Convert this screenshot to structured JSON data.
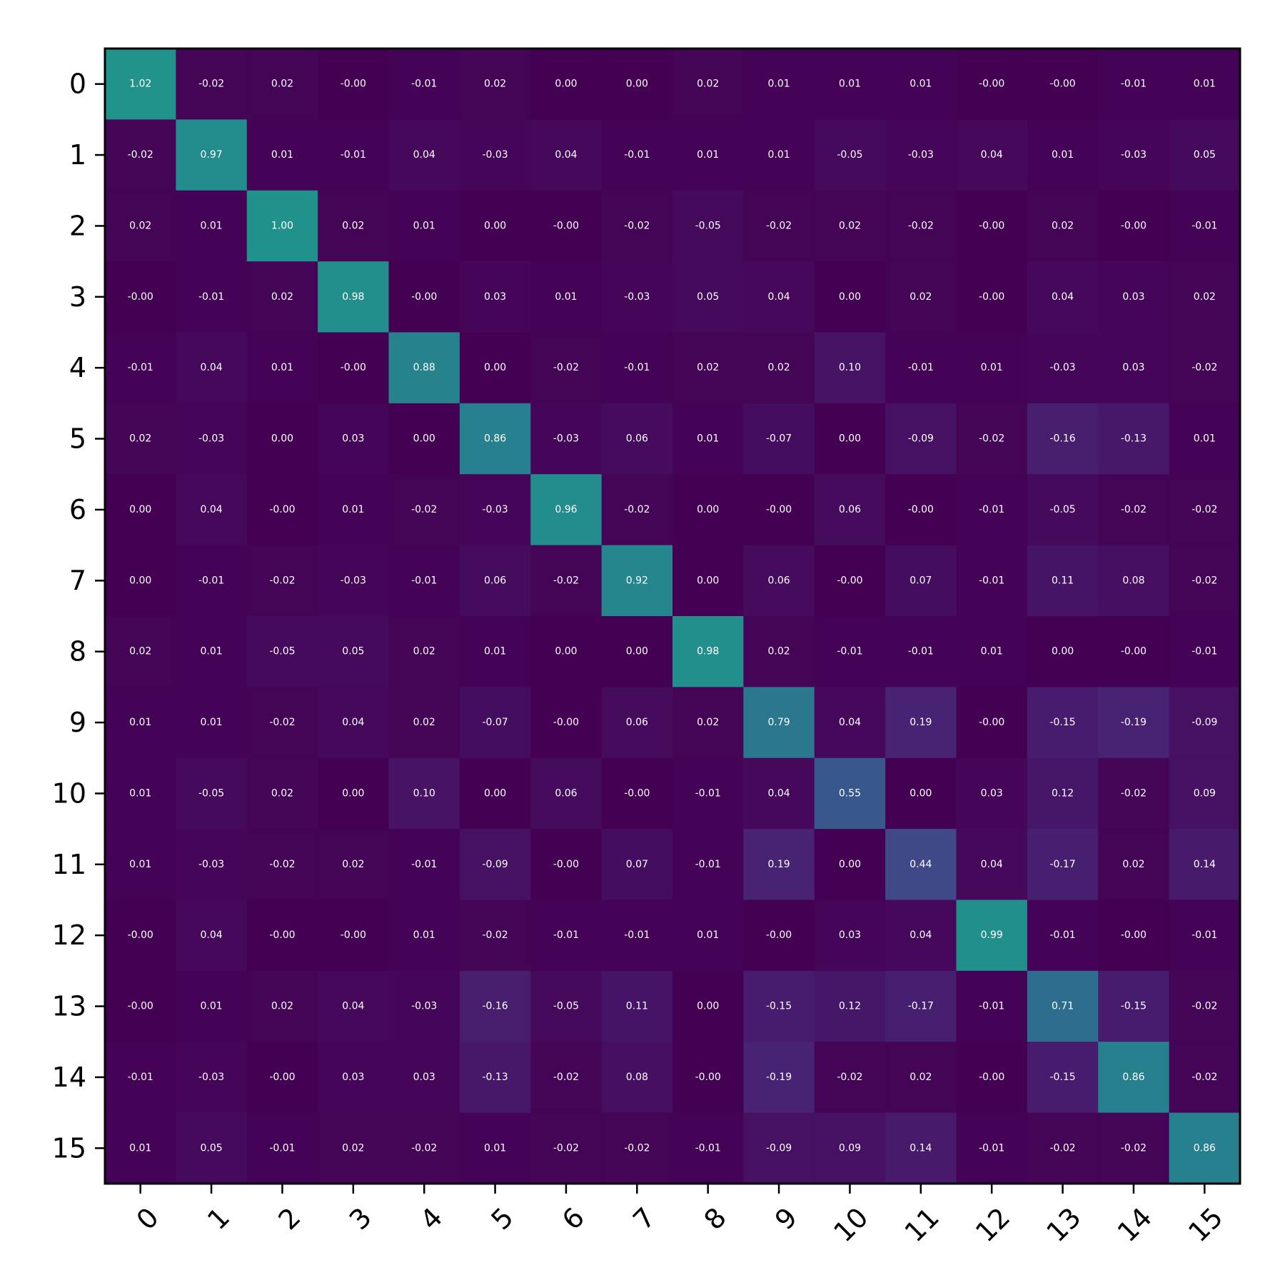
{
  "chart_data": {
    "type": "heatmap",
    "title": "",
    "xlabel": "",
    "ylabel": "",
    "x_categories": [
      "0",
      "1",
      "2",
      "3",
      "4",
      "5",
      "6",
      "7",
      "8",
      "9",
      "10",
      "11",
      "12",
      "13",
      "14",
      "15"
    ],
    "y_categories": [
      "0",
      "1",
      "2",
      "3",
      "4",
      "5",
      "6",
      "7",
      "8",
      "9",
      "10",
      "11",
      "12",
      "13",
      "14",
      "15"
    ],
    "x_tick_rotation_deg": 45,
    "colormap": "viridis",
    "value_range": [
      -1,
      3
    ],
    "grid": false,
    "value_labels": [
      [
        "1.02",
        "-0.02",
        "0.02",
        "-0.00",
        "-0.01",
        "0.02",
        "0.00",
        "0.00",
        "0.02",
        "0.01",
        "0.01",
        "0.01",
        "-0.00",
        "-0.00",
        "-0.01",
        "0.01"
      ],
      [
        "-0.02",
        "0.97",
        "0.01",
        "-0.01",
        "0.04",
        "-0.03",
        "0.04",
        "-0.01",
        "0.01",
        "0.01",
        "-0.05",
        "-0.03",
        "0.04",
        "0.01",
        "-0.03",
        "0.05"
      ],
      [
        "0.02",
        "0.01",
        "1.00",
        "0.02",
        "0.01",
        "0.00",
        "-0.00",
        "-0.02",
        "-0.05",
        "-0.02",
        "0.02",
        "-0.02",
        "-0.00",
        "0.02",
        "-0.00",
        "-0.01"
      ],
      [
        "-0.00",
        "-0.01",
        "0.02",
        "0.98",
        "-0.00",
        "0.03",
        "0.01",
        "-0.03",
        "0.05",
        "0.04",
        "0.00",
        "0.02",
        "-0.00",
        "0.04",
        "0.03",
        "0.02"
      ],
      [
        "-0.01",
        "0.04",
        "0.01",
        "-0.00",
        "0.88",
        "0.00",
        "-0.02",
        "-0.01",
        "0.02",
        "0.02",
        "0.10",
        "-0.01",
        "0.01",
        "-0.03",
        "0.03",
        "-0.02"
      ],
      [
        "0.02",
        "-0.03",
        "0.00",
        "0.03",
        "0.00",
        "0.86",
        "-0.03",
        "0.06",
        "0.01",
        "-0.07",
        "0.00",
        "-0.09",
        "-0.02",
        "-0.16",
        "-0.13",
        "0.01"
      ],
      [
        "0.00",
        "0.04",
        "-0.00",
        "0.01",
        "-0.02",
        "-0.03",
        "0.96",
        "-0.02",
        "0.00",
        "-0.00",
        "0.06",
        "-0.00",
        "-0.01",
        "-0.05",
        "-0.02",
        "-0.02"
      ],
      [
        "0.00",
        "-0.01",
        "-0.02",
        "-0.03",
        "-0.01",
        "0.06",
        "-0.02",
        "0.92",
        "0.00",
        "0.06",
        "-0.00",
        "0.07",
        "-0.01",
        "0.11",
        "0.08",
        "-0.02"
      ],
      [
        "0.02",
        "0.01",
        "-0.05",
        "0.05",
        "0.02",
        "0.01",
        "0.00",
        "0.00",
        "0.98",
        "0.02",
        "-0.01",
        "-0.01",
        "0.01",
        "0.00",
        "-0.00",
        "-0.01"
      ],
      [
        "0.01",
        "0.01",
        "-0.02",
        "0.04",
        "0.02",
        "-0.07",
        "-0.00",
        "0.06",
        "0.02",
        "0.79",
        "0.04",
        "0.19",
        "-0.00",
        "-0.15",
        "-0.19",
        "-0.09"
      ],
      [
        "0.01",
        "-0.05",
        "0.02",
        "0.00",
        "0.10",
        "0.00",
        "0.06",
        "-0.00",
        "-0.01",
        "0.04",
        "0.55",
        "0.00",
        "0.03",
        "0.12",
        "-0.02",
        "0.09"
      ],
      [
        "0.01",
        "-0.03",
        "-0.02",
        "0.02",
        "-0.01",
        "-0.09",
        "-0.00",
        "0.07",
        "-0.01",
        "0.19",
        "0.00",
        "0.44",
        "0.04",
        "-0.17",
        "0.02",
        "0.14"
      ],
      [
        "-0.00",
        "0.04",
        "-0.00",
        "-0.00",
        "0.01",
        "-0.02",
        "-0.01",
        "-0.01",
        "0.01",
        "-0.00",
        "0.03",
        "0.04",
        "0.99",
        "-0.01",
        "-0.00",
        "-0.01"
      ],
      [
        "-0.00",
        "0.01",
        "0.02",
        "0.04",
        "-0.03",
        "-0.16",
        "-0.05",
        "0.11",
        "0.00",
        "-0.15",
        "0.12",
        "-0.17",
        "-0.01",
        "0.71",
        "-0.15",
        "-0.02"
      ],
      [
        "-0.01",
        "-0.03",
        "-0.00",
        "0.03",
        "0.03",
        "-0.13",
        "-0.02",
        "0.08",
        "-0.00",
        "-0.19",
        "-0.02",
        "0.02",
        "-0.00",
        "-0.15",
        "0.86",
        "-0.02"
      ],
      [
        "0.01",
        "0.05",
        "-0.01",
        "0.02",
        "-0.02",
        "0.01",
        "-0.02",
        "-0.02",
        "-0.01",
        "-0.09",
        "0.09",
        "0.14",
        "-0.01",
        "-0.02",
        "-0.02",
        "0.86"
      ]
    ]
  }
}
